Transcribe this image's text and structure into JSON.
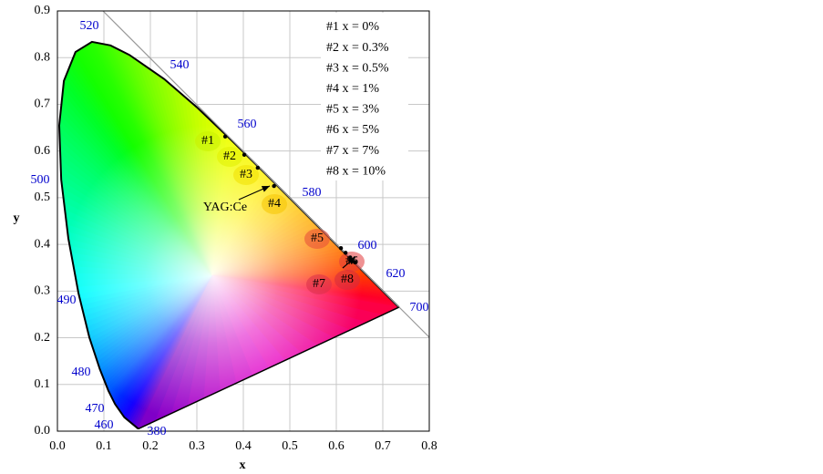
{
  "chart_data": {
    "type": "scatter",
    "xlabel": "x",
    "ylabel": "y",
    "xlim": [
      0,
      0.8
    ],
    "ylim": [
      0,
      0.9
    ],
    "xticks": [
      {
        "value": 0,
        "label": "0.0"
      },
      0.1,
      0.2,
      0.3,
      0.4,
      0.5,
      0.6,
      0.7,
      0.8
    ],
    "yticks": [
      {
        "value": 0,
        "label": "0.0"
      },
      0.1,
      0.2,
      0.3,
      0.4,
      0.5,
      0.6,
      0.7,
      0.8,
      0.9
    ],
    "grid": true,
    "x": [
      0.361,
      0.402,
      0.431,
      0.466,
      0.61,
      0.62,
      0.63,
      0.64
    ],
    "values": [
      0.631,
      0.592,
      0.564,
      0.525,
      0.392,
      0.382,
      0.372,
      0.362
    ],
    "color": "#000000",
    "point_labels": [
      "#1",
      "#2",
      "#3",
      "#4",
      "#5",
      "#6",
      "#7",
      "#8"
    ],
    "legend_text": [
      "#1 x = 0%",
      "#2 x = 0.3%",
      "#3 x = 0.5%",
      "#4 x = 1%",
      "#5 x = 3%",
      "#6 x = 5%",
      "#7 x = 7%",
      "#8 x = 10%"
    ],
    "annotation": "YAG:Ce",
    "wavelength_labels": [
      520,
      540,
      560,
      580,
      600,
      620,
      700,
      500,
      490,
      480,
      470,
      460,
      380
    ],
    "wavelength_color": "#0000cc"
  }
}
